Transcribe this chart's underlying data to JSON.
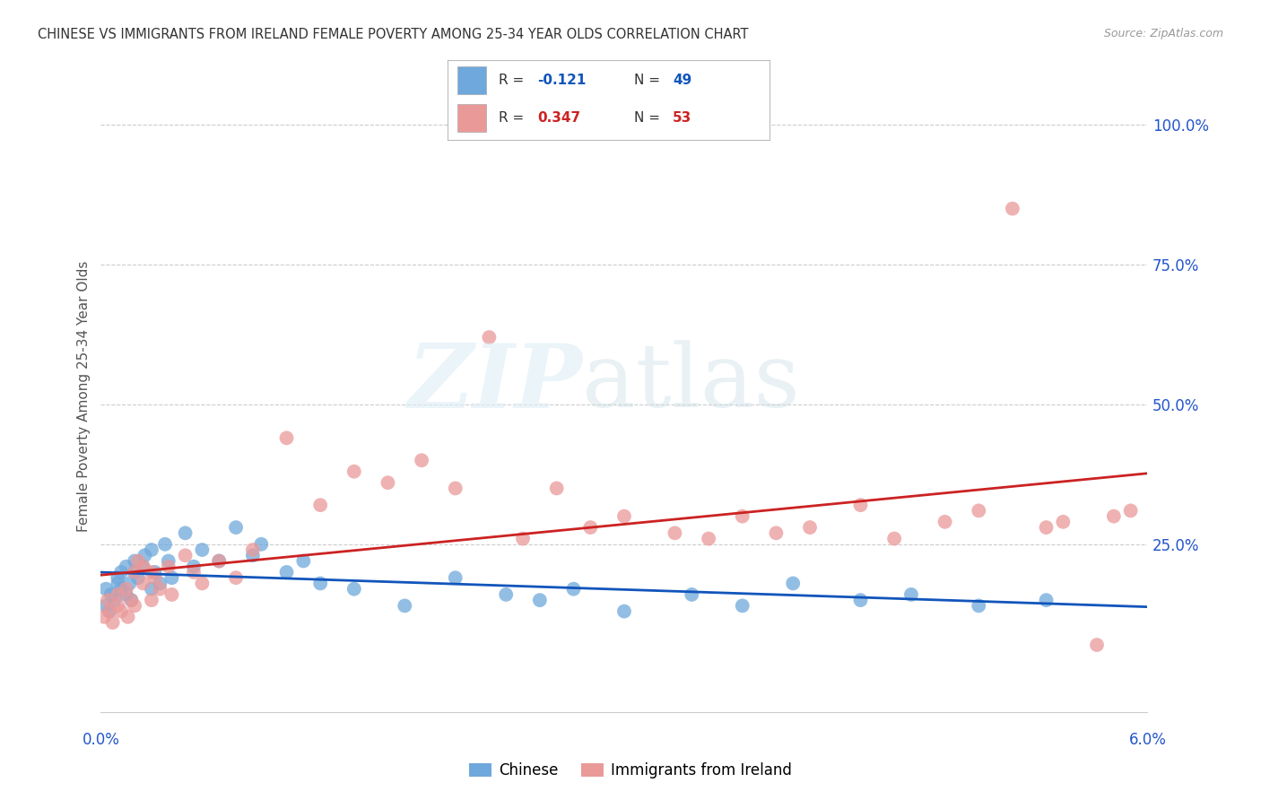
{
  "title": "CHINESE VS IMMIGRANTS FROM IRELAND FEMALE POVERTY AMONG 25-34 YEAR OLDS CORRELATION CHART",
  "source": "Source: ZipAtlas.com",
  "ylabel": "Female Poverty Among 25-34 Year Olds",
  "right_ytick_labels": [
    "100.0%",
    "75.0%",
    "50.0%",
    "25.0%"
  ],
  "right_ytick_vals": [
    1.0,
    0.75,
    0.5,
    0.25
  ],
  "legend_labels": [
    "Chinese",
    "Immigrants from Ireland"
  ],
  "legend_r_vals": [
    "-0.121",
    "0.347"
  ],
  "legend_n_vals": [
    "49",
    "53"
  ],
  "blue_color": "#6fa8dc",
  "pink_color": "#ea9999",
  "blue_line_color": "#1155bb",
  "pink_line_color": "#cc2222",
  "label_color": "#2255cc",
  "title_color": "#333333",
  "source_color": "#999999",
  "grid_color": "#cccccc",
  "bg_color": "#ffffff",
  "xlim": [
    0.0,
    0.062
  ],
  "ylim": [
    -0.05,
    1.08
  ],
  "chinese_x": [
    0.0003,
    0.0003,
    0.0005,
    0.0006,
    0.0008,
    0.001,
    0.001,
    0.0012,
    0.0012,
    0.0015,
    0.0015,
    0.0017,
    0.0018,
    0.002,
    0.002,
    0.0022,
    0.0025,
    0.0026,
    0.003,
    0.003,
    0.0032,
    0.0035,
    0.0038,
    0.004,
    0.0042,
    0.005,
    0.0055,
    0.006,
    0.007,
    0.008,
    0.009,
    0.0095,
    0.011,
    0.012,
    0.013,
    0.015,
    0.018,
    0.021,
    0.024,
    0.026,
    0.028,
    0.031,
    0.035,
    0.038,
    0.041,
    0.045,
    0.048,
    0.052,
    0.056
  ],
  "chinese_y": [
    0.14,
    0.17,
    0.13,
    0.16,
    0.15,
    0.18,
    0.19,
    0.17,
    0.2,
    0.16,
    0.21,
    0.18,
    0.15,
    0.2,
    0.22,
    0.19,
    0.21,
    0.23,
    0.17,
    0.24,
    0.2,
    0.18,
    0.25,
    0.22,
    0.19,
    0.27,
    0.21,
    0.24,
    0.22,
    0.28,
    0.23,
    0.25,
    0.2,
    0.22,
    0.18,
    0.17,
    0.14,
    0.19,
    0.16,
    0.15,
    0.17,
    0.13,
    0.16,
    0.14,
    0.18,
    0.15,
    0.16,
    0.14,
    0.15
  ],
  "ireland_x": [
    0.0002,
    0.0004,
    0.0005,
    0.0007,
    0.001,
    0.001,
    0.0012,
    0.0015,
    0.0016,
    0.0018,
    0.002,
    0.002,
    0.0022,
    0.0025,
    0.0025,
    0.003,
    0.003,
    0.0032,
    0.0035,
    0.004,
    0.0042,
    0.005,
    0.0055,
    0.006,
    0.007,
    0.008,
    0.009,
    0.011,
    0.013,
    0.015,
    0.017,
    0.019,
    0.021,
    0.023,
    0.025,
    0.027,
    0.029,
    0.031,
    0.034,
    0.036,
    0.038,
    0.04,
    0.042,
    0.045,
    0.047,
    0.05,
    0.052,
    0.054,
    0.056,
    0.057,
    0.059,
    0.06,
    0.061
  ],
  "ireland_y": [
    0.12,
    0.15,
    0.13,
    0.11,
    0.14,
    0.16,
    0.13,
    0.17,
    0.12,
    0.15,
    0.14,
    0.2,
    0.22,
    0.18,
    0.21,
    0.15,
    0.2,
    0.19,
    0.17,
    0.21,
    0.16,
    0.23,
    0.2,
    0.18,
    0.22,
    0.19,
    0.24,
    0.44,
    0.32,
    0.38,
    0.36,
    0.4,
    0.35,
    0.62,
    0.26,
    0.35,
    0.28,
    0.3,
    0.27,
    0.26,
    0.3,
    0.27,
    0.28,
    0.32,
    0.26,
    0.29,
    0.31,
    0.85,
    0.28,
    0.29,
    0.07,
    0.3,
    0.31
  ]
}
